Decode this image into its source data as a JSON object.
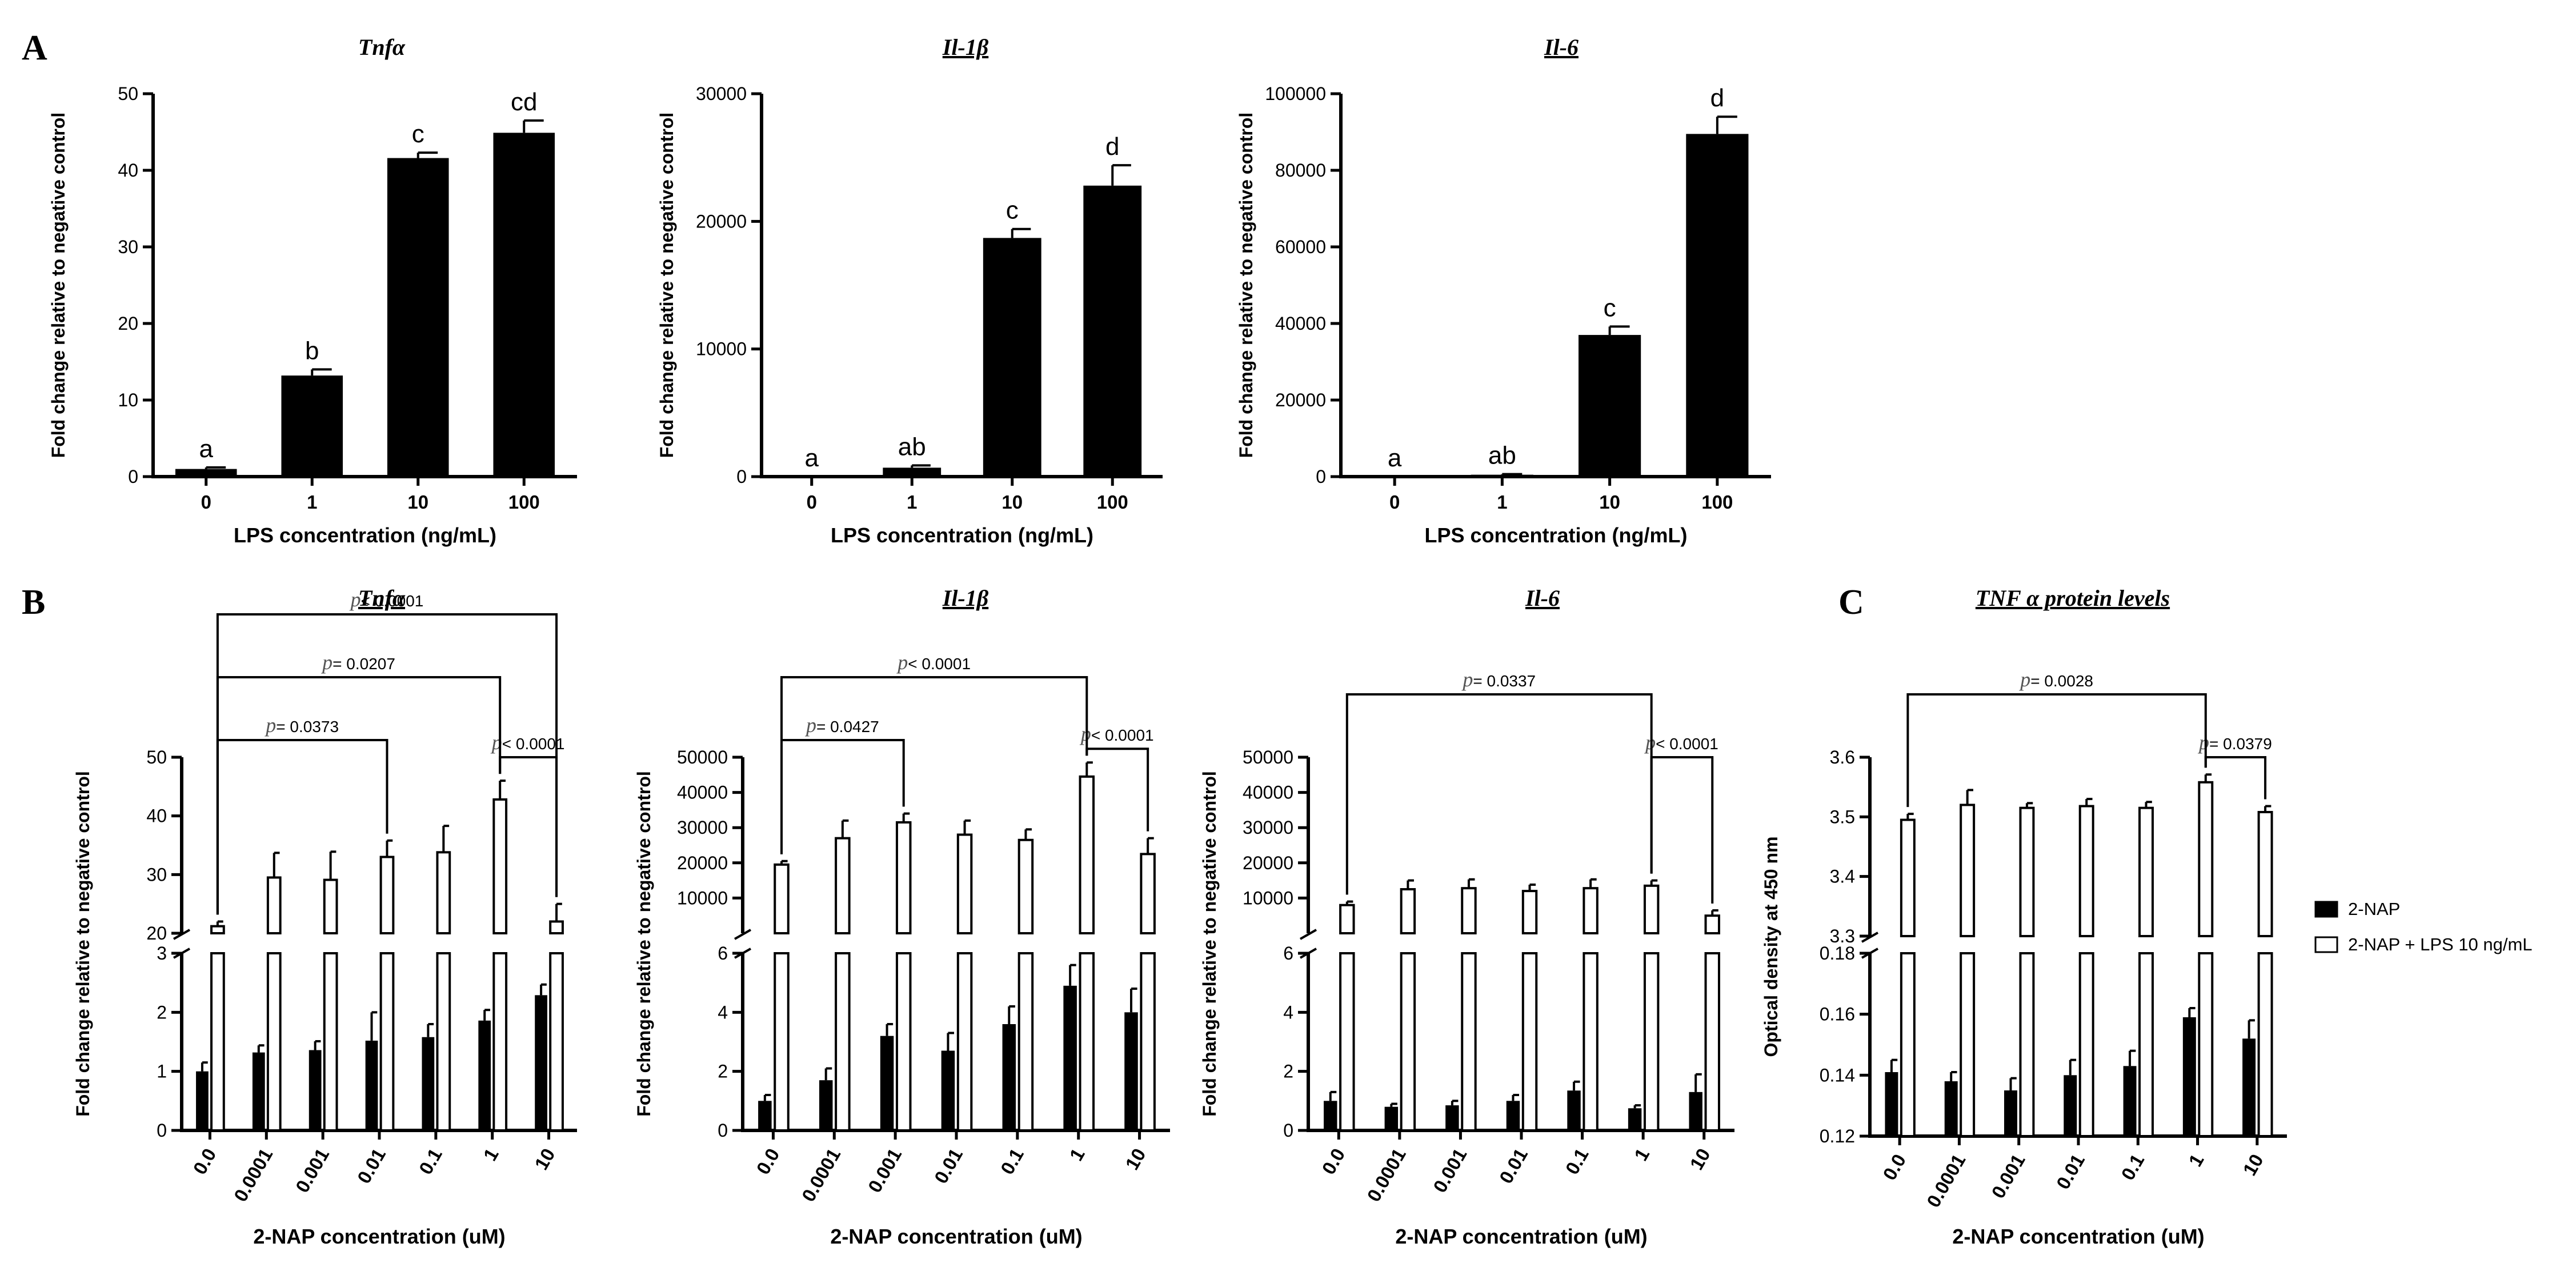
{
  "panel_labels": {
    "A": "A",
    "B": "B",
    "C": "C"
  },
  "colors": {
    "ink": "#000000",
    "open_bar": "#ffffff",
    "pvalue_prefix": "#555555"
  },
  "legend": {
    "items": [
      {
        "label": "2-NAP",
        "fill": "#000000"
      },
      {
        "label": "2-NAP + LPS 10 ng/mL",
        "fill": "#ffffff"
      }
    ]
  },
  "chart_data": [
    {
      "id": "a_tnfa",
      "type": "bar",
      "title": "Tnfα",
      "underline": false,
      "xlabel": "LPS concentration (ng/mL)",
      "ylabel": "Fold change relative to negative control",
      "ylim": [
        0,
        50
      ],
      "yticks": [
        0,
        10,
        20,
        30,
        40,
        50
      ],
      "ytick_labels": [
        "0",
        "10",
        "20",
        "30",
        "40",
        "50"
      ],
      "categories": [
        "0",
        "1",
        "10",
        "100"
      ],
      "series": [
        {
          "name": "LPS",
          "fill": "#000000",
          "values": [
            1,
            13.2,
            41.6,
            44.9
          ],
          "errors": [
            0.2,
            0.8,
            0.7,
            1.6
          ]
        }
      ],
      "letters": [
        "a",
        "b",
        "c",
        "cd"
      ]
    },
    {
      "id": "a_il1b",
      "type": "bar",
      "title": "Il-1β",
      "underline": true,
      "xlabel": "LPS concentration (ng/mL)",
      "ylabel": "Fold change relative to negative control",
      "ylim": [
        0,
        30000
      ],
      "yticks": [
        0,
        10000,
        20000,
        30000
      ],
      "ytick_labels": [
        "0",
        "10000",
        "20000",
        "30000"
      ],
      "categories": [
        "0",
        "1",
        "10",
        "100"
      ],
      "series": [
        {
          "name": "LPS",
          "fill": "#000000",
          "values": [
            1,
            700,
            18700,
            22800
          ],
          "errors": [
            0,
            180,
            700,
            1600
          ]
        }
      ],
      "letters": [
        "a",
        "ab",
        "c",
        "d"
      ]
    },
    {
      "id": "a_il6",
      "type": "bar",
      "title": "Il-6",
      "underline": true,
      "xlabel": "LPS concentration (ng/mL)",
      "ylabel": "Fold change relative to negative control",
      "ylim": [
        0,
        100000
      ],
      "yticks": [
        0,
        20000,
        40000,
        60000,
        80000,
        100000
      ],
      "ytick_labels": [
        "0",
        "20000",
        "40000",
        "60000",
        "80000",
        "100000"
      ],
      "categories": [
        "0",
        "1",
        "10",
        "100"
      ],
      "series": [
        {
          "name": "LPS",
          "fill": "#000000",
          "values": [
            1,
            500,
            37000,
            89500
          ],
          "errors": [
            0,
            150,
            2200,
            4500
          ]
        }
      ],
      "letters": [
        "a",
        "ab",
        "c",
        "d"
      ]
    },
    {
      "id": "b_tnfa",
      "type": "bar",
      "title": "Tnfα",
      "underline": true,
      "xlabel": "2-NAP concentration (uM)",
      "ylabel": "Fold change relative to negative control",
      "broken_axis": true,
      "lower": {
        "ylim": [
          0,
          3
        ],
        "yticks": [
          0,
          1,
          2,
          3
        ],
        "ytick_labels": [
          "0",
          "1",
          "2",
          "3"
        ]
      },
      "upper": {
        "ylim": [
          20,
          50
        ],
        "yticks": [
          20,
          30,
          40,
          50
        ],
        "ytick_labels": [
          "20",
          "30",
          "40",
          "50"
        ]
      },
      "categories": [
        "0.0",
        "0.0001",
        "0.001",
        "0.01",
        "0.1",
        "1",
        "10"
      ],
      "series": [
        {
          "name": "2-NAP",
          "fill": "#000000",
          "values": [
            1.0,
            1.32,
            1.36,
            1.52,
            1.58,
            1.86,
            2.29
          ],
          "errors": [
            0.15,
            0.12,
            0.15,
            0.48,
            0.22,
            0.18,
            0.18
          ]
        },
        {
          "name": "2-NAP + LPS 10 ng/mL",
          "fill": "#ffffff",
          "values": [
            21.2,
            29.5,
            29.1,
            33.0,
            33.8,
            42.8,
            22.0
          ],
          "errors": [
            0.8,
            4.2,
            4.8,
            2.8,
            4.5,
            3.2,
            3.0
          ]
        }
      ],
      "comparisons": [
        {
          "a": [
            0,
            1
          ],
          "b": [
            6,
            1
          ],
          "prefix": "p",
          "text": "< 0.0001"
        },
        {
          "a": [
            0,
            1
          ],
          "b": [
            5,
            1
          ],
          "prefix": "p",
          "text": "= 0.0207"
        },
        {
          "a": [
            0,
            1
          ],
          "b": [
            3,
            1
          ],
          "prefix": "p",
          "text": "= 0.0373"
        },
        {
          "a": [
            5,
            1
          ],
          "b": [
            6,
            1
          ],
          "prefix": "p",
          "text": "< 0.0001"
        }
      ]
    },
    {
      "id": "b_il1b",
      "type": "bar",
      "title": "Il-1β",
      "underline": true,
      "xlabel": "2-NAP concentration (uM)",
      "ylabel": "Fold change relative to negative control",
      "broken_axis": true,
      "lower": {
        "ylim": [
          0,
          6
        ],
        "yticks": [
          0,
          2,
          4,
          6
        ],
        "ytick_labels": [
          "0",
          "2",
          "4",
          "6"
        ]
      },
      "upper": {
        "ylim": [
          0,
          50000
        ],
        "yticks": [
          10000,
          20000,
          30000,
          40000,
          50000
        ],
        "ytick_labels": [
          "10000",
          "20000",
          "30000",
          "40000",
          "50000"
        ]
      },
      "categories": [
        "0.0",
        "0.0001",
        "0.001",
        "0.01",
        "0.1",
        "1",
        "10"
      ],
      "series": [
        {
          "name": "2-NAP",
          "fill": "#000000",
          "values": [
            1.0,
            1.7,
            3.2,
            2.7,
            3.6,
            4.9,
            4.0
          ],
          "errors": [
            0.2,
            0.4,
            0.4,
            0.6,
            0.6,
            0.7,
            0.8
          ]
        },
        {
          "name": "2-NAP + LPS 10 ng/mL",
          "fill": "#ffffff",
          "values": [
            19500,
            27000,
            31500,
            28000,
            26500,
            44500,
            22500
          ],
          "errors": [
            1000,
            5000,
            2500,
            4000,
            3000,
            4000,
            4500
          ]
        }
      ],
      "comparisons": [
        {
          "a": [
            0,
            1
          ],
          "b": [
            5,
            1
          ],
          "prefix": "p",
          "text": "< 0.0001"
        },
        {
          "a": [
            0,
            1
          ],
          "b": [
            2,
            1
          ],
          "prefix": "p",
          "text": "= 0.0427"
        },
        {
          "a": [
            5,
            1
          ],
          "b": [
            6,
            1
          ],
          "prefix": "p",
          "text": "< 0.0001"
        }
      ]
    },
    {
      "id": "b_il6",
      "type": "bar",
      "title": "Il-6",
      "underline": true,
      "xlabel": "2-NAP concentration (uM)",
      "ylabel": "Fold change relative to negative control",
      "broken_axis": true,
      "lower": {
        "ylim": [
          0,
          6
        ],
        "yticks": [
          0,
          2,
          4,
          6
        ],
        "ytick_labels": [
          "0",
          "2",
          "4",
          "6"
        ]
      },
      "upper": {
        "ylim": [
          0,
          50000
        ],
        "yticks": [
          10000,
          20000,
          30000,
          40000,
          50000
        ],
        "ytick_labels": [
          "10000",
          "20000",
          "30000",
          "40000",
          "50000"
        ]
      },
      "categories": [
        "0.0",
        "0.0001",
        "0.001",
        "0.01",
        "0.1",
        "1",
        "10"
      ],
      "series": [
        {
          "name": "2-NAP",
          "fill": "#000000",
          "values": [
            1.0,
            0.8,
            0.85,
            1.0,
            1.35,
            0.75,
            1.3
          ],
          "errors": [
            0.3,
            0.1,
            0.15,
            0.2,
            0.3,
            0.1,
            0.6
          ]
        },
        {
          "name": "2-NAP + LPS 10 ng/mL",
          "fill": "#ffffff",
          "values": [
            8000,
            12500,
            12800,
            12000,
            12800,
            13500,
            5000
          ],
          "errors": [
            1000,
            2500,
            2500,
            1800,
            2500,
            1500,
            1500
          ]
        }
      ],
      "comparisons": [
        {
          "a": [
            0,
            1
          ],
          "b": [
            5,
            1
          ],
          "prefix": "p",
          "text": "= 0.0337"
        },
        {
          "a": [
            5,
            1
          ],
          "b": [
            6,
            1
          ],
          "prefix": "p",
          "text": "< 0.0001"
        }
      ]
    },
    {
      "id": "c_tnf_protein",
      "type": "bar",
      "title": "TNF α protein levels",
      "underline": true,
      "xlabel": "2-NAP concentration (uM)",
      "ylabel": "Optical density at 450 nm",
      "broken_axis": true,
      "lower": {
        "ylim": [
          0.12,
          0.18
        ],
        "yticks": [
          0.12,
          0.14,
          0.16,
          0.18
        ],
        "ytick_labels": [
          "0.12",
          "0.14",
          "0.16",
          "0.18"
        ]
      },
      "upper": {
        "ylim": [
          3.3,
          3.6
        ],
        "yticks": [
          3.3,
          3.4,
          3.5,
          3.6
        ],
        "ytick_labels": [
          "3.3",
          "3.4",
          "3.5",
          "3.6"
        ]
      },
      "categories": [
        "0.0",
        "0.0001",
        "0.001",
        "0.01",
        "0.1",
        "1",
        "10"
      ],
      "series": [
        {
          "name": "2-NAP",
          "fill": "#000000",
          "values": [
            0.141,
            0.138,
            0.135,
            0.14,
            0.143,
            0.159,
            0.152
          ],
          "errors": [
            0.004,
            0.003,
            0.004,
            0.005,
            0.005,
            0.003,
            0.006
          ]
        },
        {
          "name": "2-NAP + LPS 10 ng/mL",
          "fill": "#ffffff",
          "values": [
            3.495,
            3.52,
            3.515,
            3.518,
            3.515,
            3.558,
            3.508
          ],
          "errors": [
            0.01,
            0.025,
            0.008,
            0.012,
            0.01,
            0.013,
            0.01
          ]
        }
      ],
      "comparisons": [
        {
          "a": [
            0,
            1
          ],
          "b": [
            5,
            1
          ],
          "prefix": "p",
          "text": "= 0.0028"
        },
        {
          "a": [
            5,
            1
          ],
          "b": [
            6,
            1
          ],
          "prefix": "p",
          "text": "= 0.0379"
        }
      ]
    }
  ]
}
